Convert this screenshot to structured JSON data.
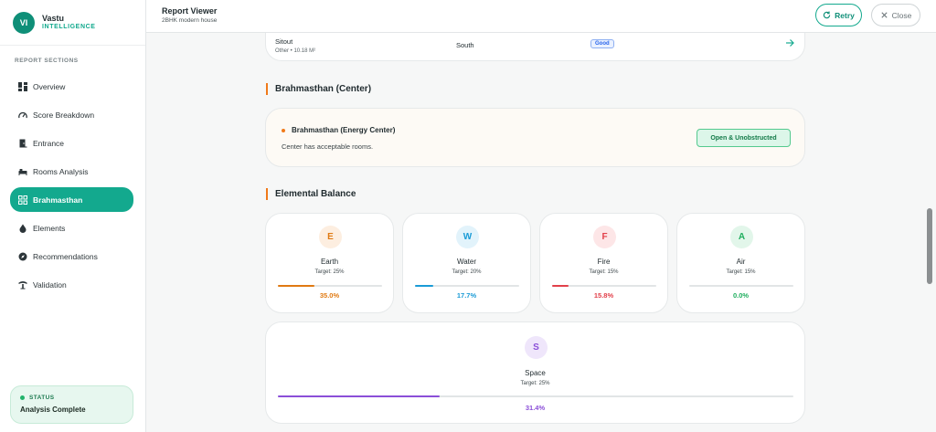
{
  "brand": {
    "initials": "VI",
    "name": "Vastu",
    "tagline": "INTELLIGENCE"
  },
  "sidebar": {
    "section_label": "REPORT SECTIONS",
    "items": [
      {
        "label": "Overview",
        "icon": "grid-icon",
        "active": false
      },
      {
        "label": "Score Breakdown",
        "icon": "gauge-icon",
        "active": false
      },
      {
        "label": "Entrance",
        "icon": "door-icon",
        "active": false
      },
      {
        "label": "Rooms Analysis",
        "icon": "bed-icon",
        "active": false
      },
      {
        "label": "Brahmasthan",
        "icon": "center-grid-icon",
        "active": true
      },
      {
        "label": "Elements",
        "icon": "drop-icon",
        "active": false
      },
      {
        "label": "Recommendations",
        "icon": "compass-icon",
        "active": false
      },
      {
        "label": "Validation",
        "icon": "tower-icon",
        "active": false
      }
    ],
    "status": {
      "label": "STATUS",
      "value": "Analysis Complete"
    }
  },
  "header": {
    "title": "Report Viewer",
    "subtitle": "2BHK modern house",
    "retry_label": "Retry",
    "close_label": "Close"
  },
  "sitout_row": {
    "name": "Sitout",
    "meta": "Other • 10.18 M²",
    "direction": "South",
    "badge": "Good"
  },
  "brahmasthan": {
    "section_title": "Brahmasthan (Center)",
    "card_title": "Brahmasthan (Energy Center)",
    "description": "Center has acceptable rooms.",
    "status": "Open & Unobstructed"
  },
  "elemental": {
    "section_title": "Elemental Balance",
    "elements": [
      {
        "letter": "E",
        "name": "Earth",
        "target": "Target: 25%",
        "value": "35.0%",
        "fraction": 0.35,
        "color": "#e07a12",
        "bg": "#fdeee0"
      },
      {
        "letter": "W",
        "name": "Water",
        "target": "Target: 20%",
        "value": "17.7%",
        "fraction": 0.177,
        "color": "#1a9bd6",
        "bg": "#e2f3fb"
      },
      {
        "letter": "F",
        "name": "Fire",
        "target": "Target: 15%",
        "value": "15.8%",
        "fraction": 0.158,
        "color": "#e2404a",
        "bg": "#fde6e7"
      },
      {
        "letter": "A",
        "name": "Air",
        "target": "Target: 15%",
        "value": "0.0%",
        "fraction": 0.0,
        "color": "#1fae5e",
        "bg": "#e2f6ea"
      },
      {
        "letter": "S",
        "name": "Space",
        "target": "Target: 25%",
        "value": "31.4%",
        "fraction": 0.314,
        "color": "#8b4fd8",
        "bg": "#efe6fb"
      }
    ]
  }
}
